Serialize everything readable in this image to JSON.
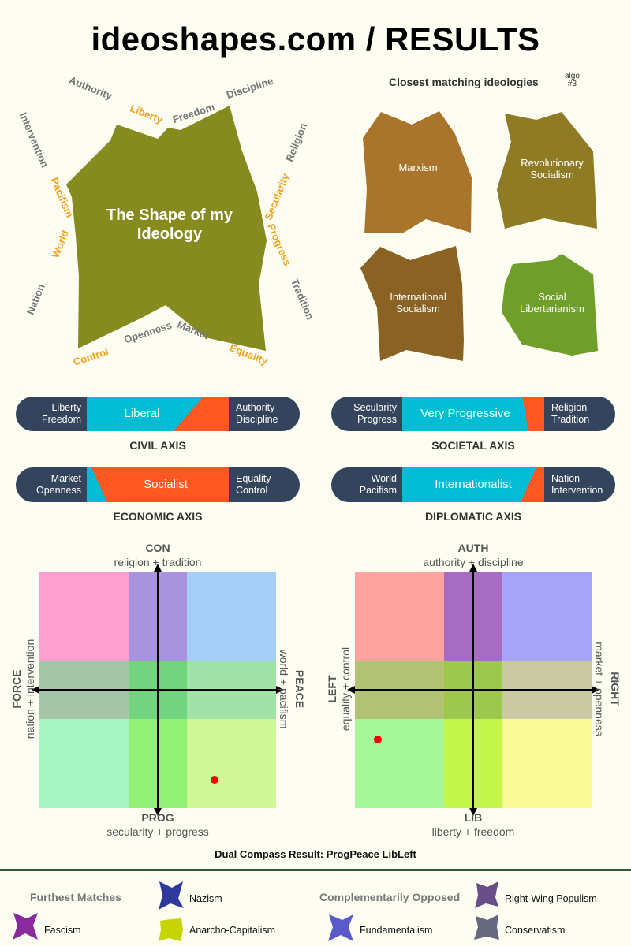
{
  "title": "ideoshapes.com / RESULTS",
  "shape": {
    "title_line1": "The Shape of my",
    "title_line2": "Ideology",
    "color": "#858b1f",
    "labels": {
      "authority": "Authority",
      "liberty": "Liberty",
      "freedom": "Freedom",
      "discipline": "Discipline",
      "intervention": "Intervention",
      "religion": "Religion",
      "pacifism": "Pacifism",
      "secularity": "Secularity",
      "world": "World",
      "progress": "Progress",
      "nation": "Nation",
      "tradition": "Tradition",
      "openness": "Openness",
      "market": "Market",
      "control": "Control",
      "equality": "Equality"
    }
  },
  "closest": {
    "title": "Closest matching ideologies",
    "algo_line1": "algo",
    "algo_line2": "#3",
    "items": [
      {
        "line1": "Marxism",
        "line2": "",
        "color": "#a8752a"
      },
      {
        "line1": "Revolutionary",
        "line2": "Socialism",
        "color": "#8e7b24"
      },
      {
        "line1": "International",
        "line2": "Socialism",
        "color": "#8a6224"
      },
      {
        "line1": "Social",
        "line2": "Libertarianism",
        "color": "#6f9e2a"
      }
    ]
  },
  "bars": [
    {
      "left1": "Liberty",
      "left2": "Freedom",
      "right1": "Authority",
      "right2": "Discipline",
      "label": "Liberal",
      "name": "CIVIL AXIS",
      "left_color": "#00bcd4",
      "right_color": "#ff5722"
    },
    {
      "left1": "Secularity",
      "left2": "Progress",
      "right1": "Religion",
      "right2": "Tradition",
      "label": "Very Progressive",
      "name": "SOCIETAL AXIS",
      "left_color": "#00bcd4",
      "right_color": "#ff5722"
    },
    {
      "left1": "Market",
      "left2": "Openness",
      "right1": "Equality",
      "right2": "Control",
      "label": "Socialist",
      "name": "ECONOMIC AXIS",
      "left_color": "#00bcd4",
      "right_color": "#ff5722"
    },
    {
      "left1": "World",
      "left2": "Pacifism",
      "right1": "Nation",
      "right2": "Intervention",
      "label": "Internationalist",
      "name": "DIPLOMATIC AXIS",
      "left_color": "#00bcd4",
      "right_color": "#ff5722"
    }
  ],
  "compasses": [
    {
      "top": "CON",
      "top_sub": "religion + tradition",
      "bottom": "PROG",
      "bottom_sub": "secularity + progress",
      "left": "FORCE",
      "left_sub": "nation + intervention",
      "right": "PEACE",
      "right_sub": "world + pacifism"
    },
    {
      "top": "AUTH",
      "top_sub": "authority + discipline",
      "bottom": "LIB",
      "bottom_sub": "liberty + freedom",
      "left": "LEFT",
      "left_sub": "equality + control",
      "right": "RIGHT",
      "right_sub": "market + openness"
    }
  ],
  "dual_result": "Dual Compass Result: ProgPeace LibLeft",
  "furthest": {
    "title": "Furthest Matches",
    "items": [
      {
        "label": "Nazism",
        "color": "#2e3a9e"
      },
      {
        "label": "Fascism",
        "color": "#8a2a9e"
      },
      {
        "label": "Anarcho-Capitalism",
        "color": "#c8d400"
      }
    ]
  },
  "opposed": {
    "title": "Complementarily Opposed",
    "items": [
      {
        "label": "Right-Wing Populism",
        "color": "#6a4e8a"
      },
      {
        "label": "Fundamentalism",
        "color": "#5a5ac8"
      },
      {
        "label": "Conservatism",
        "color": "#666a80"
      }
    ]
  }
}
